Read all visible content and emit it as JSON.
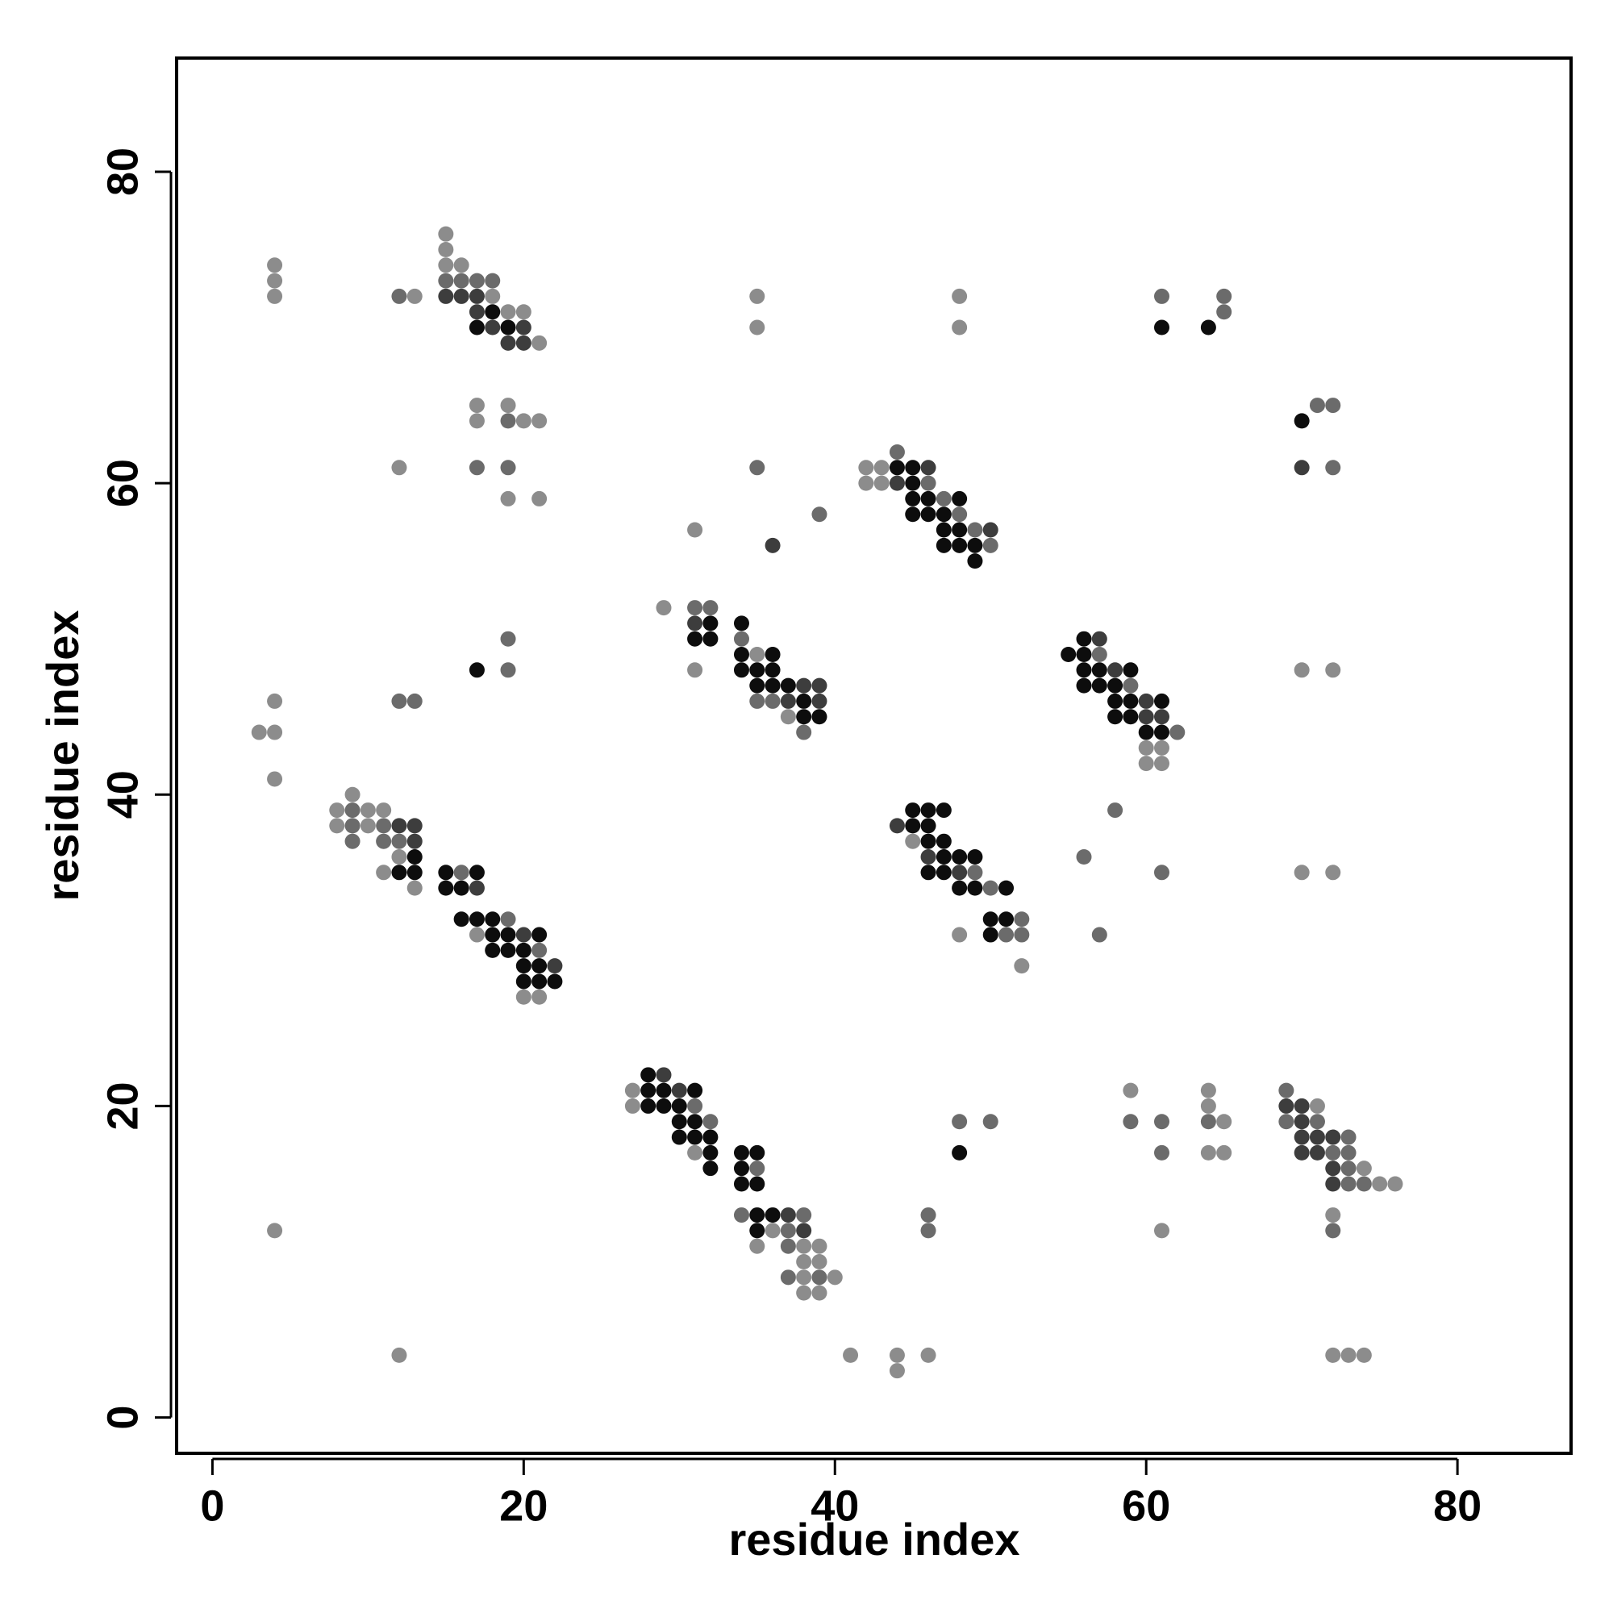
{
  "chart_data": {
    "type": "scatter",
    "xlabel": "residue index",
    "ylabel": "residue index",
    "xlim": [
      -2.3,
      87.3
    ],
    "ylim": [
      -2.3,
      87.3
    ],
    "xticks": [
      0,
      20,
      40,
      60,
      80
    ],
    "yticks": [
      0,
      20,
      40,
      60,
      80
    ],
    "grid": false,
    "series": [
      {
        "color": "#8c8c8c",
        "x": [
          4,
          4,
          4,
          13,
          15,
          15,
          15,
          16,
          18,
          19,
          20,
          21,
          35,
          35,
          48,
          48,
          17,
          17,
          19,
          19,
          20,
          21,
          21,
          12,
          31,
          42,
          42,
          43,
          43,
          29,
          31,
          35,
          37,
          4,
          4,
          4,
          3,
          60,
          60,
          61,
          61,
          70,
          72,
          70,
          72,
          8,
          8,
          9,
          10,
          10,
          11,
          11,
          12,
          13,
          17,
          20,
          21,
          45,
          48,
          52,
          27,
          27,
          31,
          35,
          36,
          38,
          38,
          38,
          38,
          39,
          39,
          39,
          40,
          4,
          59,
          61,
          64,
          64,
          64,
          65,
          65,
          71,
          72,
          74,
          75,
          76,
          12,
          41,
          44,
          44,
          46,
          72,
          73,
          74
        ],
        "values": [
          74,
          73,
          72,
          72,
          76,
          75,
          74,
          74,
          72,
          71,
          71,
          69,
          72,
          70,
          72,
          70,
          65,
          64,
          65,
          59,
          64,
          64,
          59,
          61,
          57,
          61,
          60,
          61,
          60,
          52,
          48,
          49,
          45,
          46,
          44,
          41,
          44,
          43,
          42,
          43,
          42,
          48,
          48,
          35,
          35,
          39,
          38,
          40,
          39,
          38,
          39,
          35,
          36,
          34,
          31,
          27,
          27,
          37,
          31,
          29,
          21,
          20,
          17,
          11,
          12,
          11,
          10,
          9,
          8,
          11,
          10,
          8,
          9,
          12,
          21,
          12,
          21,
          20,
          17,
          19,
          17,
          20,
          13,
          16,
          15,
          15,
          4,
          4,
          4,
          3,
          4,
          4,
          4,
          4
        ]
      },
      {
        "color": "#6b6b6b",
        "x": [
          12,
          15,
          16,
          17,
          18,
          61,
          65,
          65,
          71,
          72,
          72,
          17,
          19,
          19,
          35,
          39,
          44,
          46,
          47,
          48,
          49,
          50,
          31,
          32,
          34,
          35,
          36,
          38,
          19,
          19,
          12,
          13,
          57,
          59,
          62,
          58,
          56,
          57,
          61,
          9,
          9,
          9,
          11,
          11,
          12,
          16,
          19,
          21,
          49,
          50,
          51,
          52,
          52,
          31,
          32,
          34,
          35,
          37,
          37,
          37,
          38,
          39,
          46,
          46,
          48,
          50,
          59,
          61,
          61,
          64,
          69,
          69,
          71,
          72,
          72,
          73,
          73,
          73,
          73,
          74
        ],
        "values": [
          72,
          73,
          73,
          73,
          73,
          72,
          72,
          71,
          65,
          65,
          61,
          61,
          64,
          61,
          61,
          58,
          62,
          60,
          59,
          58,
          57,
          56,
          52,
          52,
          50,
          46,
          46,
          44,
          50,
          48,
          46,
          46,
          49,
          47,
          44,
          39,
          36,
          31,
          35,
          39,
          38,
          37,
          38,
          37,
          37,
          35,
          32,
          30,
          35,
          34,
          31,
          32,
          31,
          20,
          19,
          13,
          16,
          12,
          11,
          9,
          13,
          9,
          13,
          12,
          19,
          19,
          19,
          19,
          17,
          19,
          21,
          19,
          19,
          17,
          12,
          18,
          17,
          16,
          15,
          15
        ]
      },
      {
        "color": "#3d3d3d",
        "x": [
          15,
          16,
          17,
          17,
          18,
          19,
          20,
          20,
          70,
          36,
          44,
          46,
          50,
          31,
          37,
          38,
          39,
          39,
          57,
          58,
          60,
          60,
          61,
          12,
          13,
          13,
          17,
          20,
          22,
          44,
          46,
          48,
          29,
          30,
          37,
          38,
          69,
          70,
          70,
          70,
          70,
          71,
          71,
          72,
          72,
          72
        ],
        "values": [
          72,
          72,
          72,
          71,
          70,
          69,
          70,
          69,
          61,
          56,
          60,
          61,
          57,
          51,
          46,
          47,
          47,
          46,
          50,
          48,
          46,
          45,
          45,
          38,
          38,
          37,
          34,
          31,
          29,
          38,
          36,
          35,
          22,
          21,
          13,
          12,
          20,
          20,
          19,
          18,
          17,
          18,
          17,
          18,
          16,
          15
        ]
      },
      {
        "color": "#0d0d0d",
        "x": [
          17,
          18,
          19,
          61,
          64,
          70,
          44,
          45,
          45,
          45,
          45,
          46,
          46,
          47,
          47,
          47,
          48,
          48,
          48,
          49,
          49,
          31,
          32,
          32,
          34,
          34,
          34,
          35,
          35,
          36,
          36,
          36,
          37,
          38,
          38,
          39,
          17,
          55,
          56,
          56,
          56,
          56,
          57,
          57,
          58,
          58,
          58,
          59,
          59,
          59,
          60,
          61,
          61,
          12,
          13,
          13,
          15,
          15,
          16,
          17,
          16,
          17,
          18,
          18,
          18,
          19,
          19,
          20,
          20,
          20,
          21,
          21,
          21,
          22,
          45,
          45,
          46,
          46,
          46,
          46,
          47,
          47,
          47,
          47,
          48,
          48,
          49,
          49,
          50,
          50,
          51,
          51,
          28,
          28,
          28,
          29,
          29,
          30,
          30,
          30,
          31,
          31,
          31,
          32,
          32,
          32,
          34,
          34,
          34,
          35,
          35,
          35,
          35,
          36,
          48
        ],
        "values": [
          70,
          71,
          70,
          70,
          70,
          64,
          61,
          61,
          60,
          59,
          58,
          59,
          58,
          58,
          57,
          56,
          59,
          57,
          56,
          56,
          55,
          50,
          51,
          50,
          51,
          49,
          48,
          48,
          47,
          49,
          48,
          47,
          47,
          46,
          45,
          45,
          48,
          49,
          50,
          49,
          48,
          47,
          48,
          47,
          47,
          46,
          45,
          48,
          46,
          45,
          44,
          46,
          44,
          35,
          36,
          35,
          35,
          34,
          34,
          35,
          32,
          32,
          32,
          31,
          30,
          31,
          30,
          30,
          29,
          28,
          31,
          29,
          28,
          28,
          39,
          38,
          39,
          38,
          37,
          35,
          39,
          37,
          36,
          35,
          36,
          34,
          36,
          34,
          32,
          31,
          34,
          32,
          22,
          21,
          20,
          21,
          20,
          20,
          19,
          18,
          21,
          19,
          18,
          18,
          17,
          16,
          17,
          16,
          15,
          17,
          15,
          13,
          12,
          13,
          17
        ]
      }
    ]
  }
}
